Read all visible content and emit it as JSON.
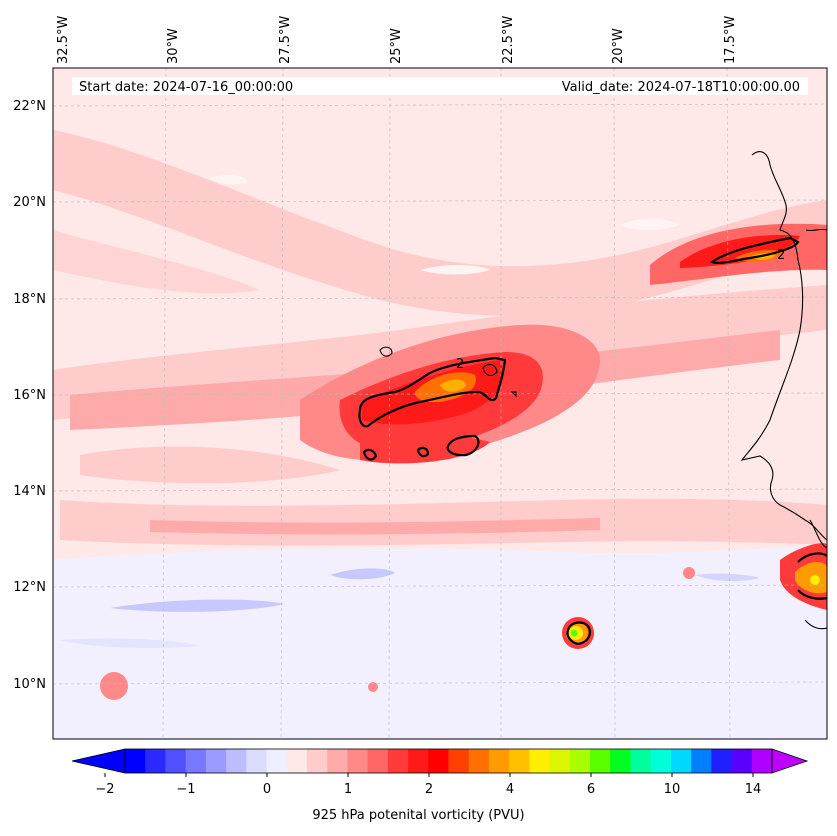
{
  "header": {
    "start_date": "Start date: 2024-07-16_00:00:00",
    "valid_date": "Valid_date: 2024-07-18T10:00:00.00"
  },
  "axes": {
    "lon_labels": [
      "32.5°W",
      "30°W",
      "27.5°W",
      "25°W",
      "22.5°W",
      "20°W",
      "17.5°W"
    ],
    "lat_labels": [
      "22°N",
      "20°N",
      "18°N",
      "16°N",
      "14°N",
      "12°N",
      "10°N"
    ]
  },
  "colorbar": {
    "label": "925 hPa potenital vorticity (PVU)",
    "ticks": [
      "−2",
      "−1",
      "0",
      "1",
      "2",
      "4",
      "6",
      "10",
      "14"
    ],
    "colors": [
      "#0000ff",
      "#2a2aff",
      "#5050ff",
      "#7878ff",
      "#9a9aff",
      "#bcbcff",
      "#dcdcff",
      "#eeeeff",
      "#ffe8e8",
      "#ffcccc",
      "#ffaaaa",
      "#ff8888",
      "#ff6666",
      "#ff3a3a",
      "#ff1a1a",
      "#ff0000",
      "#ff4000",
      "#ff7000",
      "#ff9a00",
      "#ffc000",
      "#ffee00",
      "#dcf500",
      "#a8ff00",
      "#5aff00",
      "#00ff20",
      "#00ff9a",
      "#00ffd8",
      "#00d8ff",
      "#0080ff",
      "#2020ff",
      "#5a00ff",
      "#b000ff"
    ]
  },
  "contour_label": "2"
}
